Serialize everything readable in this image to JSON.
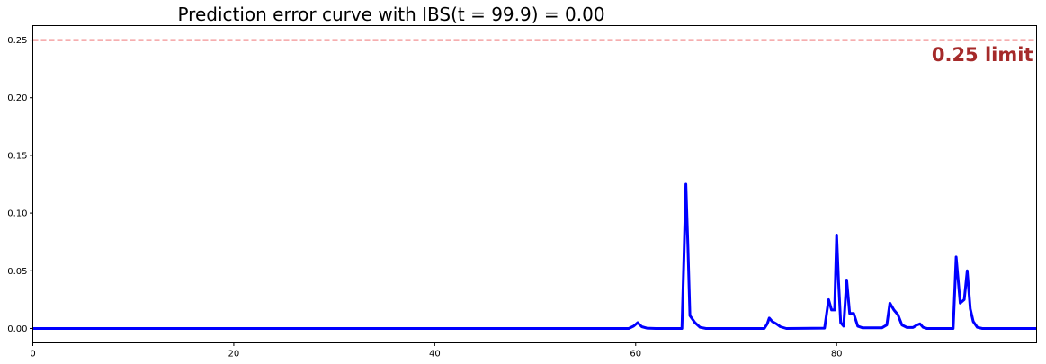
{
  "chart_data": {
    "type": "line",
    "title": "Prediction error curve with IBS(t = 99.9) = 0.00",
    "xlabel": "",
    "ylabel": "",
    "xlim": [
      0,
      99.9
    ],
    "ylim": [
      -0.0125,
      0.2625
    ],
    "grid": false,
    "x_ticks": [
      0,
      20,
      40,
      60,
      80
    ],
    "x_tick_labels": [
      "0",
      "20",
      "40",
      "60",
      "80"
    ],
    "y_ticks": [
      0.0,
      0.05,
      0.1,
      0.15,
      0.2,
      0.25
    ],
    "y_tick_labels": [
      "0.00",
      "0.05",
      "0.10",
      "0.15",
      "0.20",
      "0.25"
    ],
    "series": [
      {
        "color": "#0000ff",
        "points": [
          [
            0,
            0
          ],
          [
            59.3,
            0
          ],
          [
            59.8,
            0.002
          ],
          [
            60.2,
            0.005
          ],
          [
            60.6,
            0.0015
          ],
          [
            61.1,
            0.0003
          ],
          [
            62,
            0
          ],
          [
            64.6,
            0
          ],
          [
            64.8,
            0.06
          ],
          [
            65.0,
            0.125
          ],
          [
            65.2,
            0.07
          ],
          [
            65.4,
            0.011
          ],
          [
            65.9,
            0.005
          ],
          [
            66.4,
            0.001
          ],
          [
            67,
            0
          ],
          [
            72.8,
            0
          ],
          [
            73.1,
            0.004
          ],
          [
            73.3,
            0.009
          ],
          [
            73.6,
            0.006
          ],
          [
            74,
            0.004
          ],
          [
            74.4,
            0.0015
          ],
          [
            75,
            0
          ],
          [
            78.8,
            0.0003
          ],
          [
            79.2,
            0.025
          ],
          [
            79.5,
            0.016
          ],
          [
            79.8,
            0.016
          ],
          [
            80.0,
            0.081
          ],
          [
            80.2,
            0.04
          ],
          [
            80.4,
            0.005
          ],
          [
            80.7,
            0.002
          ],
          [
            81.0,
            0.042
          ],
          [
            81.3,
            0.013
          ],
          [
            81.7,
            0.013
          ],
          [
            82.1,
            0.002
          ],
          [
            82.6,
            0.0005
          ],
          [
            84.5,
            0.0005
          ],
          [
            85.0,
            0.003
          ],
          [
            85.3,
            0.022
          ],
          [
            85.7,
            0.016
          ],
          [
            86.1,
            0.012
          ],
          [
            86.5,
            0.003
          ],
          [
            87,
            0.0008
          ],
          [
            87.6,
            0.0008
          ],
          [
            88.0,
            0.003
          ],
          [
            88.3,
            0.004
          ],
          [
            88.6,
            0.001
          ],
          [
            89,
            0
          ],
          [
            91.6,
            0
          ],
          [
            91.9,
            0.062
          ],
          [
            92.3,
            0.022
          ],
          [
            92.7,
            0.025
          ],
          [
            93.0,
            0.05
          ],
          [
            93.3,
            0.017
          ],
          [
            93.6,
            0.006
          ],
          [
            94,
            0.001
          ],
          [
            94.5,
            0
          ],
          [
            99.9,
            0
          ]
        ]
      }
    ],
    "reference_line": {
      "y": 0.25,
      "color": "#e8282b",
      "style": "dashed"
    },
    "annotation": {
      "text": "0.25 limit",
      "x": 99.9,
      "y": 0.238,
      "color": "#a52a2a",
      "anchor": "end"
    }
  }
}
